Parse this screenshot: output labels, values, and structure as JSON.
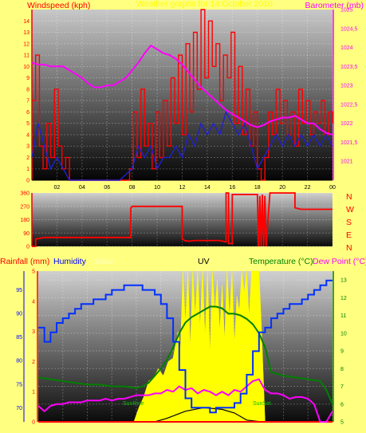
{
  "header": {
    "windspeed_label": "Windspeed (kph)",
    "barometer_label": "Barometer (mb)",
    "title": "Weather graphs for 14 October 2010",
    "rainfall_label": "Rainfall (mm)",
    "humidity_label": "Humidity",
    "solar_label": "Solar",
    "uv_label": "UV",
    "temperature_label": "Temperature (°C)",
    "dewpoint_label": "Dew Point (°C)"
  },
  "direction_labels": [
    "N",
    "W",
    "S",
    "E",
    "N"
  ],
  "annotations": {
    "sunrise": "SunRise",
    "sunset": "SunSet"
  },
  "colors": {
    "background": "#ffff80",
    "wind": "#ff0000",
    "gust": "#e00000",
    "avg_wind": "#2020d0",
    "barometer": "#ff00ff",
    "humidity": "#0030ff",
    "temperature": "#008000",
    "dewpoint": "#ff00ff",
    "solar": "#ffff00",
    "rain": "#ff0000",
    "sun": "#00c000"
  },
  "chart_data": [
    {
      "type": "line",
      "name": "wind-barometer",
      "xlabel": "",
      "x_ticks": [
        "02",
        "04",
        "06",
        "08",
        "10",
        "12",
        "14",
        "16",
        "18",
        "20",
        "22",
        "00"
      ],
      "xlim": [
        0,
        24
      ],
      "left_axis": {
        "label": "Windspeed (kph)",
        "ylim": [
          0,
          15
        ],
        "ticks": [
          "0",
          "1",
          "2",
          "3",
          "4",
          "5",
          "6",
          "7",
          "8",
          "9",
          "10",
          "11",
          "12",
          "13",
          "14"
        ]
      },
      "right_axis": {
        "label": "Barometer (mb)",
        "ylim": [
          1020.5,
          1025
        ],
        "ticks": [
          "1021",
          "1021,5",
          "1022",
          "1022,5",
          "1023",
          "1023,5",
          "1024",
          "1024,5",
          "1025"
        ]
      },
      "series": [
        {
          "key": "gust",
          "axis": "left",
          "x": [
            0,
            0.3,
            0.6,
            0.9,
            1.2,
            1.5,
            1.8,
            2.1,
            2.4,
            2.7,
            3,
            3.3,
            3.6,
            4,
            4.5,
            5,
            5.5,
            6,
            6.5,
            7,
            7.5,
            7.8,
            8.1,
            8.4,
            8.7,
            9,
            9.3,
            9.6,
            9.9,
            10.2,
            10.5,
            10.8,
            11.1,
            11.4,
            11.7,
            12,
            12.3,
            12.6,
            12.9,
            13.2,
            13.5,
            13.8,
            14.1,
            14.4,
            14.7,
            15,
            15.3,
            15.6,
            15.9,
            16.2,
            16.5,
            16.8,
            17.1,
            17.4,
            17.7,
            18,
            18.3,
            18.6,
            18.9,
            19.2,
            19.5,
            19.8,
            20.1,
            20.4,
            20.7,
            21,
            21.3,
            21.6,
            21.9,
            22.2,
            22.5,
            22.8,
            23.1,
            23.4,
            23.7,
            24
          ],
          "values": [
            7,
            11,
            3,
            1,
            5,
            2,
            8,
            3,
            1,
            2,
            0,
            0,
            0,
            0,
            0,
            0,
            0,
            0,
            0,
            0,
            0,
            1,
            6,
            2,
            8,
            3,
            5,
            1,
            6,
            2,
            7,
            3,
            9,
            5,
            11,
            4,
            12,
            6,
            13,
            8,
            15,
            9,
            14,
            10,
            12,
            7,
            11,
            9,
            13,
            5,
            10,
            4,
            8,
            3,
            6,
            1,
            0,
            2,
            6,
            4,
            8,
            5,
            7,
            4,
            6,
            3,
            8,
            5,
            7,
            4,
            6,
            5,
            7,
            4,
            6,
            5
          ]
        },
        {
          "key": "avg",
          "axis": "left",
          "x": [
            0,
            0.5,
            1,
            1.5,
            2,
            2.5,
            3,
            3.5,
            4,
            5,
            6,
            7,
            7.5,
            8,
            8.5,
            9,
            9.5,
            10,
            10.5,
            11,
            11.5,
            12,
            12.5,
            13,
            13.5,
            14,
            14.5,
            15,
            15.5,
            16,
            16.5,
            17,
            17.5,
            18,
            18.5,
            19,
            19.5,
            20,
            20.5,
            21,
            21.5,
            22,
            22.5,
            23,
            23.5,
            24
          ],
          "values": [
            2,
            5,
            3,
            1,
            2,
            1,
            0,
            0,
            0,
            0,
            0,
            0,
            0.5,
            1,
            3,
            2,
            3,
            1,
            2,
            2,
            3,
            2,
            4,
            3,
            5,
            4,
            5,
            4,
            6,
            5,
            4,
            5,
            3,
            1,
            2,
            3,
            4,
            3,
            4,
            3,
            4,
            3,
            4,
            3,
            4,
            3
          ]
        },
        {
          "key": "barometer",
          "axis": "right",
          "x": [
            0,
            0.5,
            1,
            1.5,
            2,
            2.5,
            3,
            3.5,
            4,
            4.5,
            5,
            5.5,
            6,
            6.5,
            7,
            7.5,
            8,
            8.5,
            9,
            9.5,
            10,
            10.5,
            11,
            11.5,
            12,
            12.5,
            13,
            13.5,
            14,
            14.5,
            15,
            15.5,
            16,
            16.5,
            17,
            17.5,
            18,
            18.5,
            19,
            19.5,
            20,
            20.5,
            21,
            21.5,
            22,
            22.5,
            23,
            23.5,
            24
          ],
          "values": [
            1023.6,
            1023.55,
            1023.55,
            1023.5,
            1023.5,
            1023.5,
            1023.4,
            1023.3,
            1023.2,
            1023.05,
            1022.95,
            1022.95,
            1023,
            1023,
            1023.1,
            1023.2,
            1023.4,
            1023.6,
            1023.85,
            1024.05,
            1023.95,
            1023.85,
            1023.8,
            1023.7,
            1023.55,
            1023.35,
            1023.15,
            1022.95,
            1022.8,
            1022.65,
            1022.5,
            1022.35,
            1022.25,
            1022.15,
            1022.05,
            1021.95,
            1021.9,
            1021.95,
            1022.05,
            1022.1,
            1022.15,
            1022.15,
            1022.2,
            1022.1,
            1022,
            1022,
            1021.85,
            1021.75,
            1021.7
          ]
        }
      ]
    },
    {
      "type": "line",
      "name": "wind-direction",
      "xlim": [
        0,
        24
      ],
      "ylim": [
        0,
        360
      ],
      "y_ticks": [
        "0",
        "90",
        "180",
        "270",
        "360"
      ],
      "series": [
        {
          "key": "direction",
          "x": [
            0,
            0.3,
            0.3,
            1,
            4,
            7.9,
            7.9,
            8,
            12,
            12,
            12.2,
            12.5,
            13,
            15,
            15.5,
            15.5,
            15.7,
            15.7,
            15.9,
            16,
            16,
            18,
            18.1,
            18.2,
            18.3,
            18.4,
            18.5,
            18.6,
            18.7,
            19,
            20.5,
            21,
            21,
            21.5,
            24
          ],
          "values": [
            0,
            0,
            50,
            60,
            60,
            60,
            260,
            270,
            270,
            50,
            40,
            35,
            40,
            40,
            30,
            360,
            360,
            20,
            20,
            20,
            350,
            350,
            0,
            340,
            0,
            350,
            0,
            340,
            0,
            360,
            360,
            360,
            260,
            250,
            250
          ]
        }
      ]
    },
    {
      "type": "line",
      "name": "temperature-humidity",
      "xlim": [
        0,
        24
      ],
      "left_axis": {
        "label": "Rainfall (mm)",
        "ylim": [
          0,
          5
        ],
        "ticks": [
          "0",
          "1",
          "2",
          "3",
          "4",
          "5"
        ]
      },
      "humidity_axis": {
        "label": "Humidity",
        "ylim": [
          67,
          99
        ],
        "ticks": [
          "70",
          "75",
          "80",
          "85",
          "90",
          "95"
        ]
      },
      "right_axis": {
        "label": "Temperature (°C)",
        "ylim": [
          5,
          13.5
        ],
        "ticks": [
          "5",
          "6",
          "7",
          "8",
          "9",
          "10",
          "11",
          "12",
          "13"
        ]
      },
      "series": [
        {
          "key": "humidity",
          "axis": "humidity",
          "x": [
            0,
            0.5,
            1,
            1.5,
            2,
            2.5,
            3,
            3.5,
            4,
            4.5,
            5,
            5.5,
            6,
            6.5,
            7,
            7.5,
            8,
            8.5,
            9,
            9.5,
            10,
            10.5,
            11,
            11.5,
            12,
            12.5,
            13,
            13.5,
            14,
            14.5,
            15,
            15.5,
            16,
            16.5,
            17,
            17.5,
            18,
            18.5,
            19,
            19.5,
            20,
            20.5,
            21,
            21.5,
            22,
            22.5,
            23,
            23.5,
            24
          ],
          "values": [
            87,
            84,
            86,
            88,
            89,
            90,
            91,
            92,
            92,
            93,
            93,
            94,
            95,
            95,
            96,
            96,
            96,
            95,
            95,
            94,
            92,
            89,
            84,
            78,
            72,
            70,
            70,
            70,
            69,
            70,
            70,
            70,
            71,
            73,
            77,
            82,
            86,
            87,
            89,
            90,
            91,
            92,
            92,
            93,
            94,
            95,
            96,
            97,
            97
          ]
        },
        {
          "key": "solar",
          "axis": "right",
          "fill": true,
          "x": [
            7.8,
            8.2,
            8.6,
            9,
            9.4,
            9.8,
            10.2,
            10.6,
            11,
            11.4,
            11.6,
            11.8,
            12,
            12.2,
            12.4,
            12.6,
            12.8,
            13,
            13.2,
            13.4,
            13.6,
            13.8,
            14,
            14.2,
            14.4,
            14.6,
            14.8,
            15,
            15.2,
            15.4,
            15.6,
            15.8,
            16,
            16.2,
            16.4,
            16.6,
            16.8,
            17,
            17.2,
            17.4,
            17.6,
            17.8,
            18,
            18.2,
            18.5
          ],
          "values": [
            5,
            5.8,
            6.4,
            7.3,
            7.5,
            8,
            7.6,
            8.4,
            8.6,
            10.1,
            9.1,
            13.5,
            10.5,
            13.5,
            9.2,
            13.5,
            11,
            13.5,
            10.3,
            13.5,
            9.8,
            13.5,
            8.9,
            13.5,
            11.2,
            13,
            10.1,
            12.7,
            9.6,
            13.5,
            10.8,
            13.5,
            9.4,
            12.1,
            11.2,
            13.5,
            12.3,
            13.5,
            10.9,
            13.5,
            13.5,
            13.5,
            13.5,
            10.4,
            5
          ]
        },
        {
          "key": "temperature",
          "axis": "right",
          "x": [
            0,
            1,
            2,
            3,
            4,
            5,
            6,
            7,
            8,
            8.5,
            9,
            9.5,
            10,
            10.5,
            11,
            11.5,
            12,
            12.5,
            13,
            13.5,
            14,
            14.5,
            15,
            15.5,
            16,
            16.5,
            17,
            17.5,
            18,
            18.5,
            19,
            20,
            21,
            22,
            23,
            23.5,
            24
          ],
          "values": [
            7.5,
            7.4,
            7.3,
            7.2,
            7.1,
            7.1,
            7,
            7,
            6.9,
            7,
            7.2,
            7.6,
            8,
            8.5,
            9.2,
            10,
            10.6,
            10.9,
            11.1,
            11.3,
            11.5,
            11.5,
            11.4,
            11.1,
            11.1,
            11,
            10.8,
            10.5,
            10,
            9.2,
            7.8,
            7.6,
            7.5,
            7.4,
            7.3,
            6.8,
            6
          ]
        },
        {
          "key": "dewpoint",
          "axis": "right",
          "x": [
            0,
            0.5,
            1,
            1.5,
            2,
            2.5,
            3,
            3.5,
            4,
            4.5,
            5,
            5.5,
            6,
            6.5,
            7,
            7.5,
            8,
            8.5,
            9,
            9.5,
            10,
            10.5,
            11,
            11.5,
            12,
            12.5,
            13,
            13.5,
            14,
            14.5,
            15,
            15.5,
            16,
            16.5,
            17,
            17.5,
            18,
            18.5,
            19,
            19.5,
            20,
            20.5,
            21,
            21.5,
            22,
            22.5,
            23,
            23.5,
            24
          ],
          "values": [
            5.9,
            5.6,
            5.9,
            6,
            6,
            6.1,
            6.1,
            6.1,
            6.2,
            6.2,
            6.2,
            6.3,
            6.2,
            6.3,
            6.3,
            6.4,
            6.5,
            6.5,
            6.5,
            6.6,
            6.6,
            6.8,
            6.7,
            7,
            6.8,
            6.9,
            6.6,
            6.8,
            6.7,
            6.5,
            6.7,
            6.5,
            6.8,
            6.7,
            7,
            7.3,
            7.4,
            6.8,
            6.6,
            6.6,
            6.5,
            6.3,
            6.4,
            6.4,
            6.3,
            6,
            5,
            5,
            5.6
          ]
        },
        {
          "key": "sun",
          "axis": "right",
          "x": [
            7.8,
            9.5,
            10.5,
            12,
            13.5,
            15,
            16,
            17,
            18.2
          ],
          "values": [
            5,
            5,
            5.2,
            5.6,
            5.8,
            5.7,
            5.5,
            5.1,
            5
          ]
        },
        {
          "key": "rain",
          "axis": "left",
          "x": [
            0,
            24
          ],
          "values": [
            0,
            0
          ]
        }
      ]
    }
  ]
}
